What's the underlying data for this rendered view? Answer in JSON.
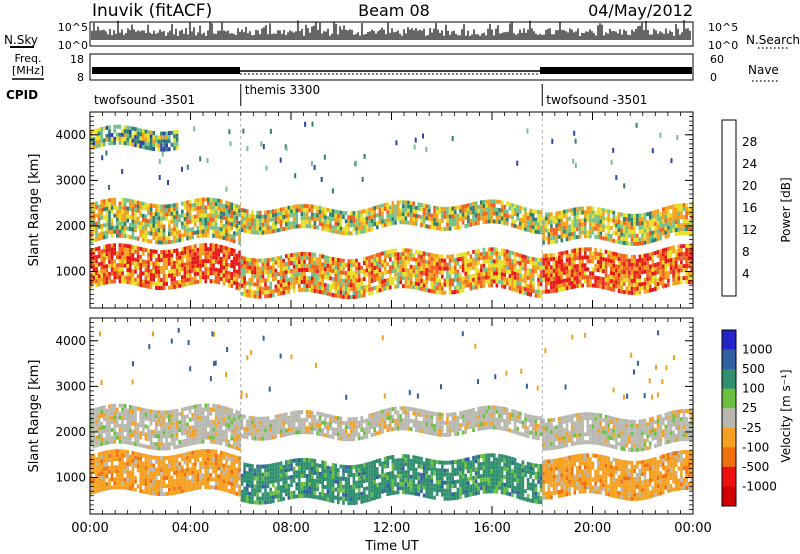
{
  "header": {
    "station": "Inuvik (fitACF)",
    "beam": "Beam 08",
    "date": "04/May/2012"
  },
  "nsky_panel": {
    "left_label": "N.Sky",
    "right_label": "N.Search",
    "left_ticks": [
      "10^5",
      "10^0"
    ],
    "right_ticks": [
      "10^5",
      "10^0"
    ]
  },
  "freq_panel": {
    "left_label_line1": "Freq.",
    "left_label_line2": "[MHz]",
    "right_label": "Nave",
    "left_ticks": [
      "18",
      "8"
    ],
    "right_ticks": [
      "60",
      "0"
    ]
  },
  "cpid": {
    "label": "CPID",
    "segments": [
      {
        "name": "twofsound -3501",
        "start_hour": 0,
        "end_hour": 6
      },
      {
        "name": "themis 3300",
        "start_hour": 6,
        "end_hour": 18
      },
      {
        "name": "twofsound -3501",
        "start_hour": 18,
        "end_hour": 24
      }
    ]
  },
  "time_axis": {
    "label": "Time UT",
    "tick_labels": [
      "00:00",
      "04:00",
      "08:00",
      "12:00",
      "16:00",
      "20:00",
      "00:00"
    ],
    "tick_hours": [
      0,
      4,
      8,
      12,
      16,
      20,
      24
    ]
  },
  "range_axis": {
    "label": "Slant Range [km]",
    "tick_labels": [
      "1000",
      "2000",
      "3000",
      "4000"
    ],
    "tick_values": [
      1000,
      2000,
      3000,
      4000
    ],
    "range": [
      200,
      4500
    ]
  },
  "power_colorbar": {
    "label": "Power [dB]",
    "tick_labels": [
      "4",
      "8",
      "12",
      "16",
      "20",
      "24",
      "28"
    ],
    "colors": [
      "#1e1eff",
      "#2d44a8",
      "#2f7f6f",
      "#74c08a",
      "#e8e027",
      "#f3a01c",
      "#f06020",
      "#e81818"
    ]
  },
  "velocity_colorbar": {
    "label": "Velocity [m s⁻¹]",
    "tick_labels": [
      "1000",
      "500",
      "100",
      "25",
      "-25",
      "-100",
      "-500",
      "-1000"
    ],
    "colors": [
      "#2323c8",
      "#3060a0",
      "#2f8f6f",
      "#6cc040",
      "#b8b8b0",
      "#f5a020",
      "#f07010",
      "#ee1010",
      "#d00000"
    ]
  },
  "chart_data": [
    {
      "type": "heatmap",
      "title": "Power",
      "xlabel": "Time UT",
      "ylabel": "Slant Range [km]",
      "xlim_hours": [
        0,
        24
      ],
      "ylim_km": [
        200,
        4500
      ],
      "colorbar_label": "Power [dB]",
      "colorbar_ticks": [
        4,
        8,
        12,
        16,
        20,
        24,
        28
      ],
      "echo_bands": [
        {
          "start_hour": 0.0,
          "end_hour": 6.0,
          "range_low_km": 1700,
          "range_high_km": 2500,
          "typical_power_db": 20
        },
        {
          "start_hour": 0.0,
          "end_hour": 6.0,
          "range_low_km": 700,
          "range_high_km": 1500,
          "typical_power_db": 26
        },
        {
          "start_hour": 0.0,
          "end_hour": 3.5,
          "range_low_km": 3700,
          "range_high_km": 4100,
          "typical_power_db": 14
        },
        {
          "start_hour": 6.0,
          "end_hour": 18.0,
          "range_low_km": 2000,
          "range_high_km": 2450,
          "typical_power_db": 18
        },
        {
          "start_hour": 6.0,
          "end_hour": 18.0,
          "range_low_km": 600,
          "range_high_km": 1400,
          "typical_power_db": 24
        },
        {
          "start_hour": 18.0,
          "end_hour": 24.0,
          "range_low_km": 1700,
          "range_high_km": 2400,
          "typical_power_db": 18
        },
        {
          "start_hour": 18.0,
          "end_hour": 24.0,
          "range_low_km": 700,
          "range_high_km": 1500,
          "typical_power_db": 26
        }
      ]
    },
    {
      "type": "heatmap",
      "title": "Velocity",
      "xlabel": "Time UT",
      "ylabel": "Slant Range [km]",
      "xlim_hours": [
        0,
        24
      ],
      "ylim_km": [
        200,
        4500
      ],
      "colorbar_label": "Velocity [m s⁻¹]",
      "colorbar_ticks": [
        1000,
        500,
        100,
        25,
        -25,
        -100,
        -500,
        -1000
      ],
      "echo_bands": [
        {
          "start_hour": 0.0,
          "end_hour": 6.0,
          "range_low_km": 1700,
          "range_high_km": 2500,
          "typical_velocity_ms": 0
        },
        {
          "start_hour": 0.0,
          "end_hour": 6.0,
          "range_low_km": 700,
          "range_high_km": 1500,
          "typical_velocity_ms": -150
        },
        {
          "start_hour": 6.0,
          "end_hour": 18.0,
          "range_low_km": 2000,
          "range_high_km": 2450,
          "typical_velocity_ms": 0
        },
        {
          "start_hour": 6.0,
          "end_hour": 18.0,
          "range_low_km": 600,
          "range_high_km": 1400,
          "typical_velocity_ms": 200
        },
        {
          "start_hour": 18.0,
          "end_hour": 24.0,
          "range_low_km": 1700,
          "range_high_km": 2400,
          "typical_velocity_ms": 0
        },
        {
          "start_hour": 18.0,
          "end_hour": 24.0,
          "range_low_km": 700,
          "range_high_km": 1500,
          "typical_velocity_ms": -200
        }
      ]
    }
  ]
}
